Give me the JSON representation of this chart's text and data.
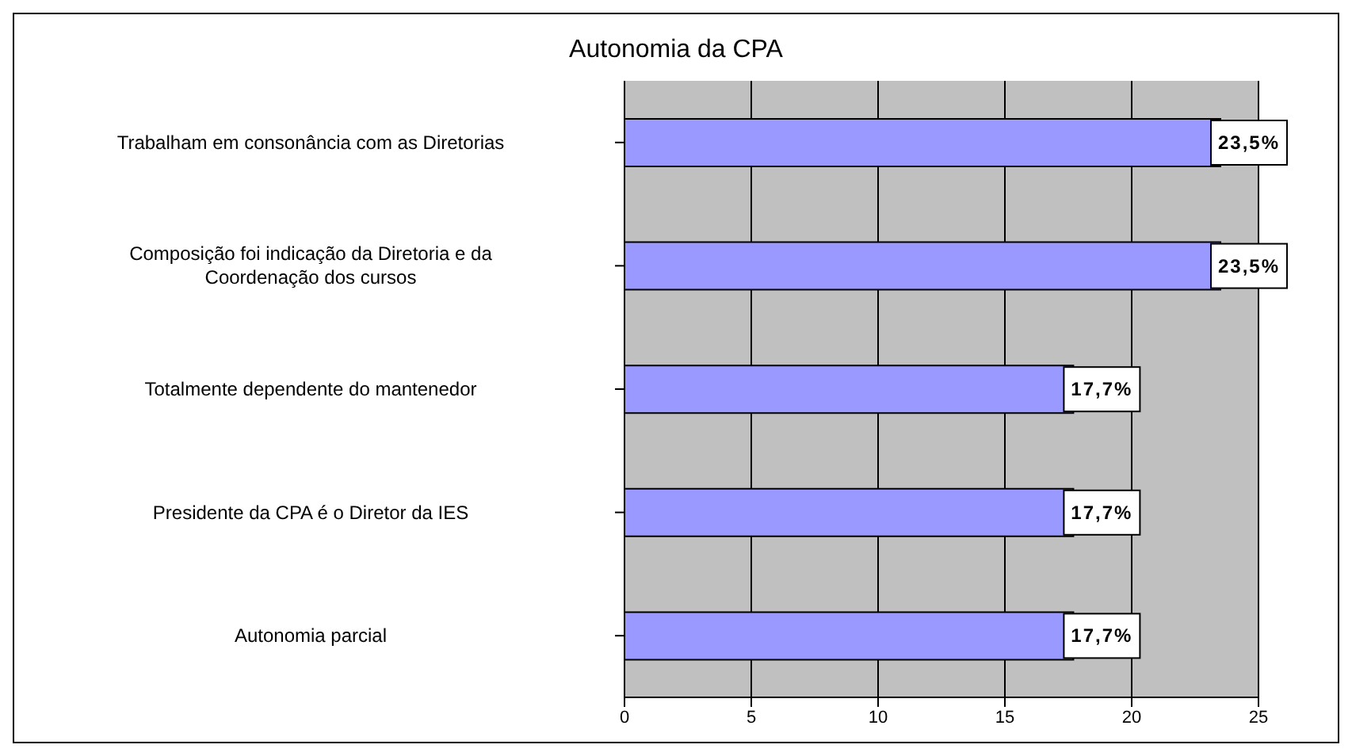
{
  "chart_data": {
    "type": "bar",
    "title": "Autonomia da CPA",
    "orientation": "horizontal",
    "categories": [
      "Trabalham em consonância com as Diretorias",
      "Composição foi indicação da Diretoria e da Coordenação dos cursos",
      "Totalmente dependente do mantenedor",
      "Presidente da CPA é o Diretor da IES",
      "Autonomia parcial"
    ],
    "values": [
      23.5,
      23.5,
      17.7,
      17.7,
      17.7
    ],
    "value_labels": [
      "23,5%",
      "23,5%",
      "17,7%",
      "17,7%",
      "17,7%"
    ],
    "color": "#9999ff",
    "xlim": [
      0,
      25
    ],
    "xticks": [
      0,
      5,
      10,
      15,
      20,
      25
    ],
    "grid": "x"
  }
}
